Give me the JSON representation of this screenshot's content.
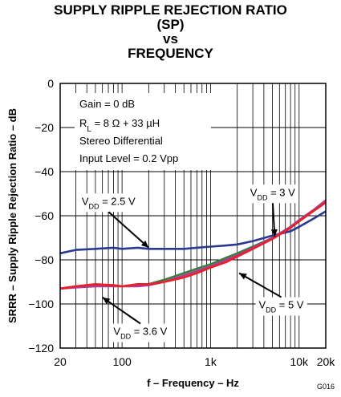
{
  "chart_data": {
    "type": "line",
    "title_lines": [
      "SUPPLY RIPPLE REJECTION RATIO",
      "(SP)",
      "vs",
      "FREQUENCY"
    ],
    "xlabel": "f – Frequency – Hz",
    "ylabel": "SRRR – Supply Ripple Rejection Ratio – dB",
    "xscale": "log",
    "xlim": [
      20,
      20000
    ],
    "ylim": [
      -120,
      0
    ],
    "x_ticks": [
      {
        "value": 20,
        "label": "20"
      },
      {
        "value": 100,
        "label": "100"
      },
      {
        "value": 1000,
        "label": "1k"
      },
      {
        "value": 10000,
        "label": "10k"
      },
      {
        "value": 20000,
        "label": "20k"
      }
    ],
    "y_ticks": [
      0,
      -20,
      -40,
      -60,
      -80,
      -100,
      -120
    ],
    "y_tick_labels": [
      "0",
      "−20",
      "−40",
      "−60",
      "−80",
      "−100",
      "−120"
    ],
    "grid": true,
    "conditions": [
      "Gain = 0 dB",
      "R_L = 8 Ω + 33 µH",
      "Stereo Differential",
      "Input Level = 0.2 Vpp"
    ],
    "series": [
      {
        "name": "VDD = 2.5 V",
        "color": "#2b3990",
        "x": [
          20,
          30,
          50,
          80,
          100,
          150,
          200,
          300,
          500,
          700,
          1000,
          1500,
          2000,
          3000,
          5000,
          8000,
          10000,
          15000,
          20000
        ],
        "y": [
          -77,
          -75.5,
          -75,
          -74.5,
          -75,
          -74.5,
          -75,
          -75,
          -75,
          -74.5,
          -74,
          -73.5,
          -73,
          -71.5,
          -69,
          -67,
          -65,
          -61,
          -58
        ]
      },
      {
        "name": "VDD = 3 V",
        "color": "#3a7d44",
        "x": [
          20,
          30,
          50,
          80,
          100,
          150,
          200,
          300,
          500,
          700,
          1000,
          1500,
          2000,
          3000,
          5000,
          8000,
          10000,
          15000,
          20000
        ],
        "y": [
          -93,
          -92,
          -91.5,
          -91.5,
          -92,
          -91.5,
          -91,
          -89,
          -86,
          -84,
          -82,
          -79,
          -77,
          -74,
          -70,
          -65,
          -62,
          -57,
          -53
        ]
      },
      {
        "name": "VDD = 3.6 V",
        "color": "#b13a8c",
        "x": [
          20,
          30,
          50,
          80,
          100,
          150,
          200,
          300,
          500,
          700,
          1000,
          1500,
          2000,
          3000,
          5000,
          8000,
          10000,
          15000,
          20000
        ],
        "y": [
          -93,
          -92.5,
          -92,
          -92,
          -92,
          -92,
          -91.5,
          -90,
          -87,
          -85,
          -83,
          -80,
          -78,
          -74.5,
          -70,
          -65,
          -62,
          -57,
          -53
        ]
      },
      {
        "name": "VDD = 5 V",
        "color": "#e8202a",
        "x": [
          20,
          30,
          50,
          80,
          100,
          150,
          200,
          300,
          500,
          700,
          1000,
          1500,
          2000,
          3000,
          5000,
          8000,
          10000,
          15000,
          20000
        ],
        "y": [
          -93,
          -92,
          -91,
          -91.5,
          -92,
          -91,
          -91,
          -90,
          -88,
          -86,
          -83.5,
          -81,
          -78.5,
          -75,
          -70.5,
          -65.5,
          -62.5,
          -57.5,
          -54
        ]
      }
    ],
    "annotations": [
      {
        "sub": "DD",
        "prefix": "V",
        "suffix": " = 2.5 V",
        "x_text": 35,
        "y_text": -55,
        "arrow_to": {
          "x": 200,
          "y": -74.5
        }
      },
      {
        "sub": "DD",
        "prefix": "V",
        "suffix": " = 3 V",
        "x_text": 2800,
        "y_text": -51,
        "arrow_to": {
          "x": 5300,
          "y": -69.5
        }
      },
      {
        "sub": "DD",
        "prefix": "V",
        "suffix": " = 5 V",
        "x_text": 3500,
        "y_text": -102,
        "arrow_to": {
          "x": 2100,
          "y": -86
        }
      },
      {
        "sub": "DD",
        "prefix": "V",
        "suffix": " = 3.6 V",
        "x_text": 80,
        "y_text": -114,
        "arrow_to": {
          "x": 60,
          "y": -97
        }
      }
    ]
  },
  "figure_id": "G016"
}
